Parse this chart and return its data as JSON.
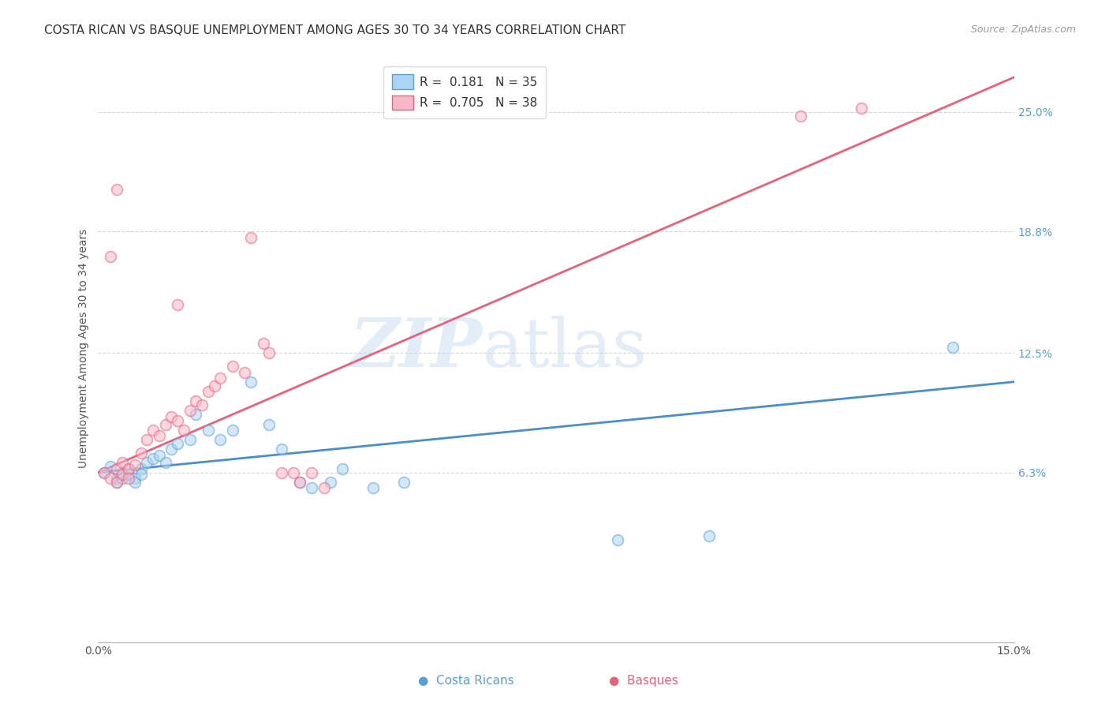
{
  "title": "COSTA RICAN VS BASQUE UNEMPLOYMENT AMONG AGES 30 TO 34 YEARS CORRELATION CHART",
  "source": "Source: ZipAtlas.com",
  "ylabel": "Unemployment Among Ages 30 to 34 years",
  "xlim": [
    0.0,
    0.15
  ],
  "ylim": [
    -0.025,
    0.28
  ],
  "xtick_labels": [
    "0.0%",
    "15.0%"
  ],
  "xtick_positions": [
    0.0,
    0.15
  ],
  "ytick_labels": [
    "6.3%",
    "12.5%",
    "18.8%",
    "25.0%"
  ],
  "ytick_positions": [
    0.063,
    0.125,
    0.188,
    0.25
  ],
  "legend_line1": "R =  0.181   N = 35",
  "legend_line2": "R =  0.705   N = 38",
  "blue_scatter": [
    [
      0.001,
      0.063
    ],
    [
      0.002,
      0.066
    ],
    [
      0.003,
      0.06
    ],
    [
      0.003,
      0.058
    ],
    [
      0.004,
      0.063
    ],
    [
      0.004,
      0.06
    ],
    [
      0.005,
      0.062
    ],
    [
      0.005,
      0.065
    ],
    [
      0.006,
      0.06
    ],
    [
      0.006,
      0.058
    ],
    [
      0.007,
      0.065
    ],
    [
      0.007,
      0.062
    ],
    [
      0.008,
      0.068
    ],
    [
      0.009,
      0.07
    ],
    [
      0.01,
      0.072
    ],
    [
      0.011,
      0.068
    ],
    [
      0.012,
      0.075
    ],
    [
      0.013,
      0.078
    ],
    [
      0.015,
      0.08
    ],
    [
      0.016,
      0.093
    ],
    [
      0.018,
      0.085
    ],
    [
      0.02,
      0.08
    ],
    [
      0.022,
      0.085
    ],
    [
      0.025,
      0.11
    ],
    [
      0.028,
      0.088
    ],
    [
      0.03,
      0.075
    ],
    [
      0.033,
      0.058
    ],
    [
      0.035,
      0.055
    ],
    [
      0.038,
      0.058
    ],
    [
      0.04,
      0.065
    ],
    [
      0.045,
      0.055
    ],
    [
      0.05,
      0.058
    ],
    [
      0.085,
      0.028
    ],
    [
      0.1,
      0.03
    ],
    [
      0.14,
      0.128
    ]
  ],
  "pink_scatter": [
    [
      0.001,
      0.063
    ],
    [
      0.002,
      0.06
    ],
    [
      0.003,
      0.065
    ],
    [
      0.003,
      0.058
    ],
    [
      0.004,
      0.068
    ],
    [
      0.004,
      0.062
    ],
    [
      0.005,
      0.065
    ],
    [
      0.005,
      0.06
    ],
    [
      0.006,
      0.067
    ],
    [
      0.007,
      0.073
    ],
    [
      0.008,
      0.08
    ],
    [
      0.009,
      0.085
    ],
    [
      0.01,
      0.082
    ],
    [
      0.011,
      0.088
    ],
    [
      0.012,
      0.092
    ],
    [
      0.013,
      0.09
    ],
    [
      0.014,
      0.085
    ],
    [
      0.015,
      0.095
    ],
    [
      0.016,
      0.1
    ],
    [
      0.017,
      0.098
    ],
    [
      0.018,
      0.105
    ],
    [
      0.019,
      0.108
    ],
    [
      0.02,
      0.112
    ],
    [
      0.022,
      0.118
    ],
    [
      0.024,
      0.115
    ],
    [
      0.025,
      0.185
    ],
    [
      0.027,
      0.13
    ],
    [
      0.028,
      0.125
    ],
    [
      0.03,
      0.063
    ],
    [
      0.032,
      0.063
    ],
    [
      0.033,
      0.058
    ],
    [
      0.035,
      0.063
    ],
    [
      0.037,
      0.055
    ],
    [
      0.002,
      0.175
    ],
    [
      0.003,
      0.21
    ],
    [
      0.115,
      0.248
    ],
    [
      0.125,
      0.252
    ],
    [
      0.013,
      0.15
    ]
  ],
  "blue_line": [
    [
      0.0,
      0.063
    ],
    [
      0.15,
      0.11
    ]
  ],
  "pink_line": [
    [
      0.0,
      0.063
    ],
    [
      0.15,
      0.268
    ]
  ],
  "scatter_size": 100,
  "scatter_alpha": 0.55,
  "blue_fill": "#ADD4F5",
  "pink_fill": "#F9B8C8",
  "blue_edge": "#5A9FD4",
  "pink_edge": "#E8607A",
  "blue_line_color": "#4A8FC8",
  "pink_line_color": "#E8607A",
  "watermark_zip": "ZIP",
  "watermark_atlas": "atlas",
  "background_color": "#FFFFFF",
  "grid_color": "#CCCCCC",
  "title_fontsize": 11,
  "axis_label_fontsize": 10,
  "tick_fontsize": 10,
  "ytick_color": "#5A9FD4"
}
